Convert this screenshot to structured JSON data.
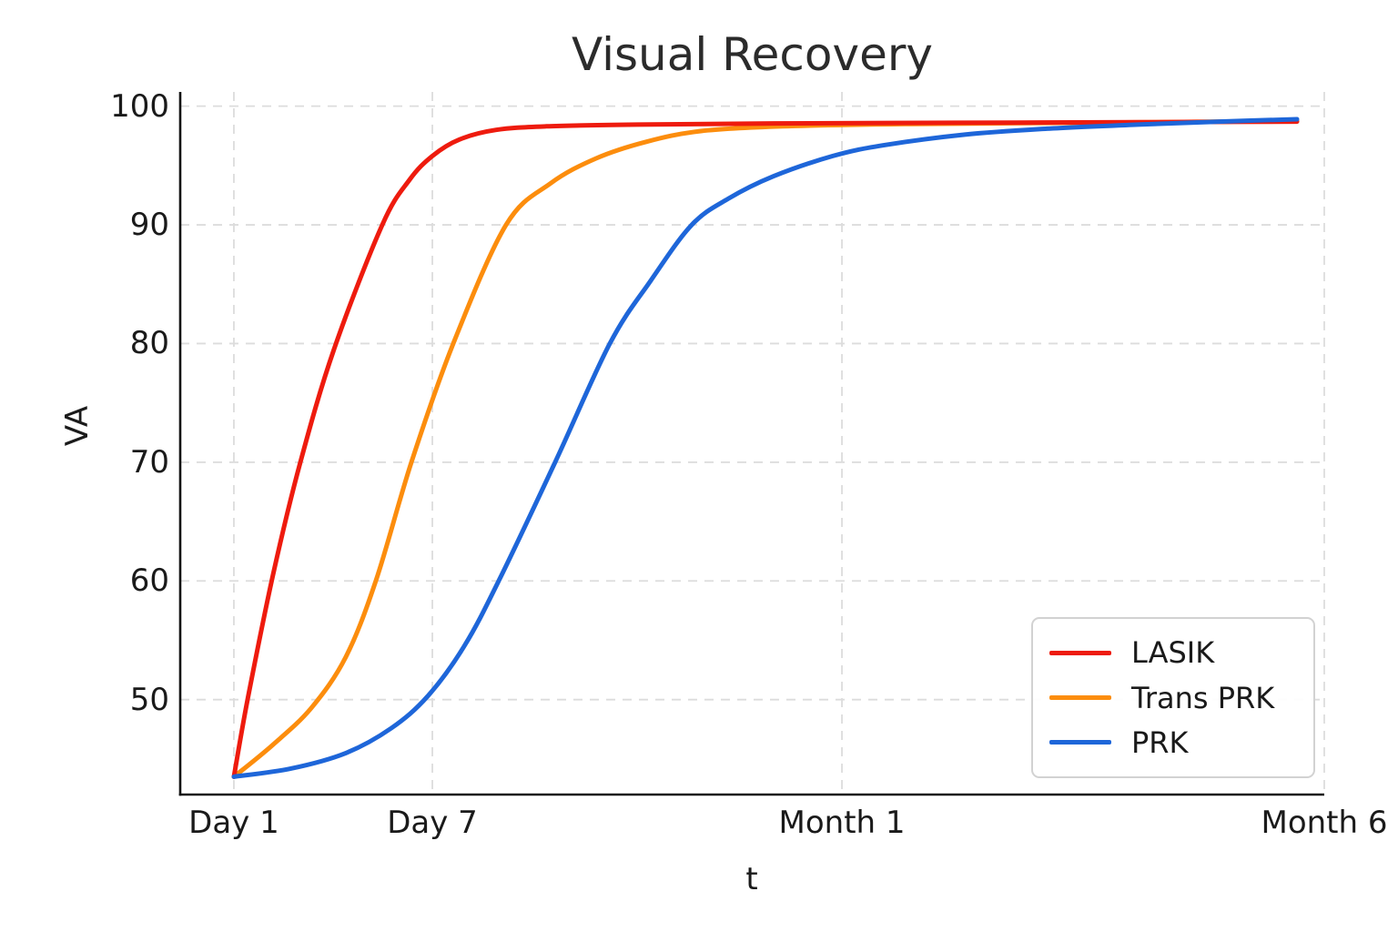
{
  "figure": {
    "background": "#ffffff"
  },
  "colors": {
    "grid": "#dcdcdc",
    "spine": "#141414",
    "text": "#1a1a1a",
    "title": "#2b2b2b"
  },
  "chart_data": {
    "type": "line",
    "title": "Visual Recovery",
    "xlabel": "t",
    "ylabel": "VA",
    "grid": true,
    "legend_position": "lower right",
    "ylim": [
      42,
      101.2
    ],
    "y_ticks": [
      50,
      60,
      70,
      80,
      90,
      100
    ],
    "x_ticks": [
      {
        "label": "Day 1",
        "t_days": 1,
        "pos": 0.0469
      },
      {
        "label": "Day 7",
        "t_days": 7,
        "pos": 0.2204
      },
      {
        "label": "Month 1",
        "t_days": 30,
        "pos": 0.5784
      },
      {
        "label": "Month 6",
        "t_days": 180,
        "pos": 1.0
      }
    ],
    "line_width": 5,
    "series": [
      {
        "key": "trans-prk",
        "label": "Trans PRK",
        "color": "#fc8d0d",
        "points": [
          [
            0.0469,
            43.5
          ],
          [
            0.0811,
            46.2
          ],
          [
            0.1146,
            49.3
          ],
          [
            0.1448,
            53.6
          ],
          [
            0.171,
            60.0
          ],
          [
            0.2021,
            70.0
          ],
          [
            0.2387,
            80.0
          ],
          [
            0.2848,
            90.0
          ],
          [
            0.3238,
            93.5
          ],
          [
            0.3636,
            95.6
          ],
          [
            0.4073,
            97.0
          ],
          [
            0.4551,
            97.9
          ],
          [
            0.5267,
            98.3
          ],
          [
            0.638,
            98.5
          ],
          [
            0.7813,
            98.6
          ],
          [
            0.9761,
            98.75
          ]
        ]
      },
      {
        "key": "lasik",
        "label": "LASIK",
        "color": "#ee1b0e",
        "points": [
          [
            0.0469,
            43.5
          ],
          [
            0.0589,
            50.0
          ],
          [
            0.0811,
            60.5
          ],
          [
            0.105,
            70.0
          ],
          [
            0.1344,
            79.5
          ],
          [
            0.1766,
            90.0
          ],
          [
            0.2005,
            93.8
          ],
          [
            0.2204,
            95.8
          ],
          [
            0.2442,
            97.2
          ],
          [
            0.2761,
            98.0
          ],
          [
            0.3198,
            98.3
          ],
          [
            0.3994,
            98.45
          ],
          [
            0.5187,
            98.55
          ],
          [
            0.6779,
            98.6
          ],
          [
            0.8369,
            98.65
          ],
          [
            0.9761,
            98.7
          ]
        ]
      },
      {
        "key": "prk",
        "label": "PRK",
        "color": "#1e66d9",
        "points": [
          [
            0.0469,
            43.5
          ],
          [
            0.0971,
            44.2
          ],
          [
            0.1448,
            45.5
          ],
          [
            0.1846,
            47.6
          ],
          [
            0.2164,
            50.3
          ],
          [
            0.2482,
            54.5
          ],
          [
            0.2784,
            60.0
          ],
          [
            0.3277,
            70.0
          ],
          [
            0.3755,
            80.0
          ],
          [
            0.4113,
            85.3
          ],
          [
            0.4471,
            90.0
          ],
          [
            0.4789,
            92.2
          ],
          [
            0.5187,
            94.1
          ],
          [
            0.5704,
            95.8
          ],
          [
            0.6142,
            96.7
          ],
          [
            0.6858,
            97.6
          ],
          [
            0.7574,
            98.1
          ],
          [
            0.8369,
            98.45
          ],
          [
            0.9085,
            98.7
          ],
          [
            0.9761,
            98.9
          ]
        ]
      }
    ]
  },
  "legend": {
    "items": [
      {
        "label": "LASIK",
        "color": "#ee1b0e"
      },
      {
        "label": "Trans PRK",
        "color": "#fc8d0d"
      },
      {
        "label": "PRK",
        "color": "#1e66d9"
      }
    ]
  }
}
